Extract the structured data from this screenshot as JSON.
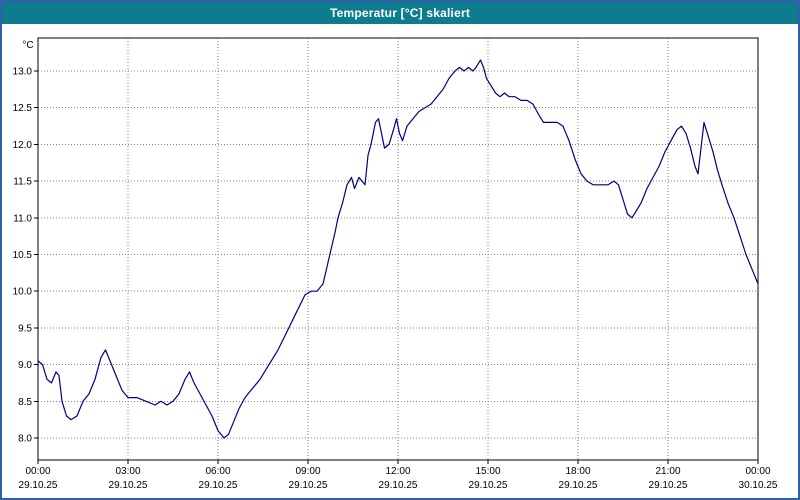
{
  "window": {
    "title": "Temperatur [°C] skaliert"
  },
  "colors": {
    "titlebar": "#0e7c8f",
    "titlebar_text": "#ffffff",
    "window_border": "#3060a8",
    "grid": "#808080",
    "axis": "#000000",
    "line": "#000080"
  },
  "chart_data": {
    "type": "line",
    "title": "Temperatur [°C] skaliert",
    "xlabel": "",
    "ylabel": "°C",
    "grid": true,
    "legend": false,
    "xlim": [
      0,
      24
    ],
    "ylim": [
      7.7,
      13.45
    ],
    "line_color": "#000080",
    "y_ticks": [
      {
        "value": 8.0,
        "label": "8.0"
      },
      {
        "value": 8.5,
        "label": "8.5"
      },
      {
        "value": 9.0,
        "label": "9.0"
      },
      {
        "value": 9.5,
        "label": "9.5"
      },
      {
        "value": 10.0,
        "label": "10.0"
      },
      {
        "value": 10.5,
        "label": "10.5"
      },
      {
        "value": 11.0,
        "label": "11.0"
      },
      {
        "value": 11.5,
        "label": "11.5"
      },
      {
        "value": 12.0,
        "label": "12.0"
      },
      {
        "value": 12.5,
        "label": "12.5"
      },
      {
        "value": 13.0,
        "label": "13.0"
      }
    ],
    "x_ticks": [
      {
        "hours": 0,
        "time": "00:00",
        "date": "29.10.25"
      },
      {
        "hours": 3,
        "time": "03:00",
        "date": "29.10.25"
      },
      {
        "hours": 6,
        "time": "06:00",
        "date": "29.10.25"
      },
      {
        "hours": 9,
        "time": "09:00",
        "date": "29.10.25"
      },
      {
        "hours": 12,
        "time": "12:00",
        "date": "29.10.25"
      },
      {
        "hours": 15,
        "time": "15:00",
        "date": "29.10.25"
      },
      {
        "hours": 18,
        "time": "18:00",
        "date": "29.10.25"
      },
      {
        "hours": 21,
        "time": "21:00",
        "date": "29.10.25"
      },
      {
        "hours": 24,
        "time": "00:00",
        "date": "30.10.25"
      }
    ],
    "series": [
      {
        "name": "Temperatur",
        "points": [
          [
            0,
            9.05
          ],
          [
            0.15,
            9.0
          ],
          [
            0.3,
            8.8
          ],
          [
            0.45,
            8.75
          ],
          [
            0.6,
            8.9
          ],
          [
            0.7,
            8.85
          ],
          [
            0.8,
            8.5
          ],
          [
            0.95,
            8.3
          ],
          [
            1.1,
            8.25
          ],
          [
            1.3,
            8.3
          ],
          [
            1.5,
            8.5
          ],
          [
            1.7,
            8.6
          ],
          [
            1.9,
            8.8
          ],
          [
            2.1,
            9.1
          ],
          [
            2.25,
            9.2
          ],
          [
            2.4,
            9.05
          ],
          [
            2.6,
            8.85
          ],
          [
            2.8,
            8.65
          ],
          [
            3.0,
            8.55
          ],
          [
            3.3,
            8.55
          ],
          [
            3.6,
            8.5
          ],
          [
            3.9,
            8.45
          ],
          [
            4.1,
            8.5
          ],
          [
            4.3,
            8.45
          ],
          [
            4.5,
            8.5
          ],
          [
            4.7,
            8.6
          ],
          [
            4.9,
            8.8
          ],
          [
            5.05,
            8.9
          ],
          [
            5.2,
            8.75
          ],
          [
            5.4,
            8.6
          ],
          [
            5.6,
            8.45
          ],
          [
            5.8,
            8.3
          ],
          [
            6.0,
            8.1
          ],
          [
            6.2,
            8.0
          ],
          [
            6.35,
            8.05
          ],
          [
            6.5,
            8.2
          ],
          [
            6.7,
            8.4
          ],
          [
            6.9,
            8.55
          ],
          [
            7.1,
            8.65
          ],
          [
            7.4,
            8.8
          ],
          [
            7.7,
            9.0
          ],
          [
            8.0,
            9.2
          ],
          [
            8.3,
            9.45
          ],
          [
            8.6,
            9.7
          ],
          [
            8.9,
            9.95
          ],
          [
            9.1,
            10.0
          ],
          [
            9.3,
            10.0
          ],
          [
            9.5,
            10.1
          ],
          [
            9.7,
            10.45
          ],
          [
            9.9,
            10.8
          ],
          [
            10.0,
            11.0
          ],
          [
            10.15,
            11.2
          ],
          [
            10.3,
            11.45
          ],
          [
            10.45,
            11.55
          ],
          [
            10.55,
            11.4
          ],
          [
            10.7,
            11.55
          ],
          [
            10.8,
            11.5
          ],
          [
            10.9,
            11.45
          ],
          [
            11.0,
            11.85
          ],
          [
            11.1,
            12.0
          ],
          [
            11.25,
            12.3
          ],
          [
            11.35,
            12.35
          ],
          [
            11.45,
            12.15
          ],
          [
            11.55,
            11.95
          ],
          [
            11.7,
            12.0
          ],
          [
            11.85,
            12.2
          ],
          [
            11.95,
            12.35
          ],
          [
            12.05,
            12.15
          ],
          [
            12.15,
            12.05
          ],
          [
            12.3,
            12.25
          ],
          [
            12.5,
            12.35
          ],
          [
            12.7,
            12.45
          ],
          [
            12.9,
            12.5
          ],
          [
            13.1,
            12.55
          ],
          [
            13.3,
            12.65
          ],
          [
            13.5,
            12.75
          ],
          [
            13.7,
            12.9
          ],
          [
            13.9,
            13.0
          ],
          [
            14.05,
            13.05
          ],
          [
            14.2,
            13.0
          ],
          [
            14.35,
            13.05
          ],
          [
            14.5,
            13.0
          ],
          [
            14.6,
            13.05
          ],
          [
            14.75,
            13.15
          ],
          [
            14.85,
            13.05
          ],
          [
            14.95,
            12.9
          ],
          [
            15.1,
            12.8
          ],
          [
            15.25,
            12.7
          ],
          [
            15.4,
            12.65
          ],
          [
            15.55,
            12.7
          ],
          [
            15.7,
            12.65
          ],
          [
            15.9,
            12.65
          ],
          [
            16.1,
            12.6
          ],
          [
            16.3,
            12.6
          ],
          [
            16.5,
            12.55
          ],
          [
            16.7,
            12.4
          ],
          [
            16.85,
            12.3
          ],
          [
            17.0,
            12.3
          ],
          [
            17.3,
            12.3
          ],
          [
            17.5,
            12.25
          ],
          [
            17.7,
            12.05
          ],
          [
            17.9,
            11.8
          ],
          [
            18.1,
            11.6
          ],
          [
            18.3,
            11.5
          ],
          [
            18.5,
            11.45
          ],
          [
            18.8,
            11.45
          ],
          [
            19.0,
            11.45
          ],
          [
            19.2,
            11.5
          ],
          [
            19.35,
            11.45
          ],
          [
            19.5,
            11.25
          ],
          [
            19.65,
            11.05
          ],
          [
            19.8,
            11.0
          ],
          [
            19.95,
            11.1
          ],
          [
            20.1,
            11.2
          ],
          [
            20.3,
            11.4
          ],
          [
            20.5,
            11.55
          ],
          [
            20.7,
            11.7
          ],
          [
            20.9,
            11.9
          ],
          [
            21.1,
            12.05
          ],
          [
            21.3,
            12.2
          ],
          [
            21.45,
            12.25
          ],
          [
            21.6,
            12.15
          ],
          [
            21.75,
            11.95
          ],
          [
            21.9,
            11.7
          ],
          [
            22.0,
            11.6
          ],
          [
            22.1,
            11.95
          ],
          [
            22.2,
            12.3
          ],
          [
            22.35,
            12.1
          ],
          [
            22.5,
            11.9
          ],
          [
            22.65,
            11.65
          ],
          [
            22.8,
            11.45
          ],
          [
            23.0,
            11.2
          ],
          [
            23.2,
            11.0
          ],
          [
            23.4,
            10.75
          ],
          [
            23.6,
            10.5
          ],
          [
            23.8,
            10.3
          ],
          [
            24.0,
            10.1
          ]
        ]
      }
    ]
  }
}
